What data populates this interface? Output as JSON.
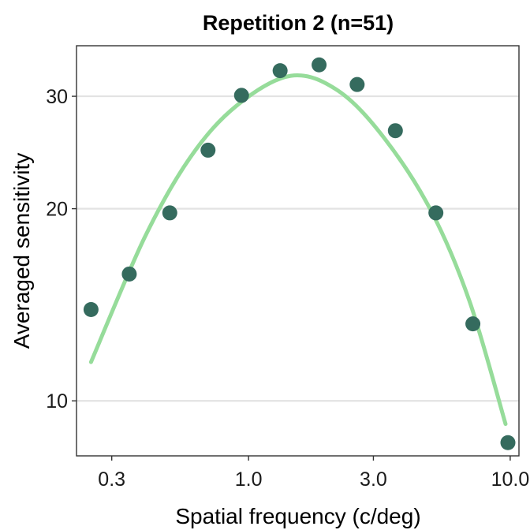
{
  "chart_data": {
    "type": "scatter",
    "title": "Repetition 2 (n=51)",
    "xlabel": "Spatial frequency (c/deg)",
    "ylabel": "Averaged sensitivity",
    "x_scale": "log",
    "y_scale": "log",
    "xlim": [
      0.22,
      10.8
    ],
    "ylim": [
      8.2,
      36
    ],
    "x_ticks": [
      {
        "value": 0.3,
        "label": "0.3"
      },
      {
        "value": 1.0,
        "label": "1.0"
      },
      {
        "value": 3.0,
        "label": "3.0"
      },
      {
        "value": 10.0,
        "label": "10.0"
      }
    ],
    "y_ticks": [
      {
        "value": 10,
        "label": "10"
      },
      {
        "value": 20,
        "label": "20"
      },
      {
        "value": 30,
        "label": "30"
      }
    ],
    "grid": "horizontal major",
    "legend": "none",
    "series": [
      {
        "type": "scatter",
        "color": "#356b5e",
        "points": [
          {
            "x": 0.25,
            "y": 13.9
          },
          {
            "x": 0.35,
            "y": 15.8
          },
          {
            "x": 0.5,
            "y": 19.7
          },
          {
            "x": 0.7,
            "y": 24.7
          },
          {
            "x": 0.94,
            "y": 30.1
          },
          {
            "x": 1.32,
            "y": 32.9
          },
          {
            "x": 1.86,
            "y": 33.6
          },
          {
            "x": 2.6,
            "y": 31.3
          },
          {
            "x": 3.64,
            "y": 26.5
          },
          {
            "x": 5.2,
            "y": 19.7
          },
          {
            "x": 7.2,
            "y": 13.2
          },
          {
            "x": 9.8,
            "y": 8.6
          }
        ]
      },
      {
        "type": "line",
        "color": "#96dc9a",
        "curve": "log-parabola fit",
        "peak": {
          "x": 1.45,
          "y": 32.3
        },
        "points": [
          {
            "x": 0.25,
            "y": 11.5
          },
          {
            "x": 0.4,
            "y": 18.0
          },
          {
            "x": 0.6,
            "y": 24.1
          },
          {
            "x": 0.9,
            "y": 29.0
          },
          {
            "x": 1.45,
            "y": 32.3
          },
          {
            "x": 2.2,
            "y": 30.6
          },
          {
            "x": 3.3,
            "y": 25.8
          },
          {
            "x": 5.0,
            "y": 19.8
          },
          {
            "x": 7.0,
            "y": 14.3
          },
          {
            "x": 9.6,
            "y": 9.2
          }
        ]
      }
    ]
  }
}
